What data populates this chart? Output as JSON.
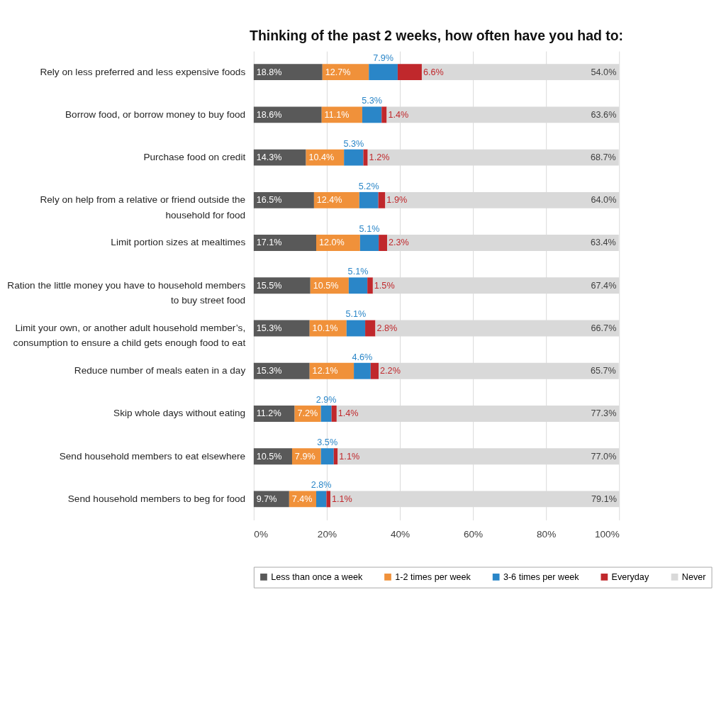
{
  "chart_data": {
    "type": "bar",
    "orientation": "horizontal",
    "stacked": true,
    "title": "Thinking of the past 2 weeks, how often have you had to:",
    "categories": [
      "Rely on less preferred and less expensive foods",
      "Borrow food, or borrow money to buy food",
      "Purchase food on credit",
      "Rely on help from a relative or friend outside the household for food",
      "Limit portion sizes at mealtimes",
      "Ration the little money you have to household members to buy street food",
      "Limit your own, or another adult household member’s, consumption to ensure a child gets enough food to eat",
      "Reduce number of meals eaten in a day",
      "Skip whole days without eating",
      "Send household members to eat elsewhere",
      "Send household members to beg for food"
    ],
    "series": [
      {
        "name": "Less than once a week",
        "color": "#595959",
        "values": [
          18.8,
          18.6,
          14.3,
          16.5,
          17.1,
          15.5,
          15.3,
          15.3,
          11.2,
          10.5,
          9.7
        ],
        "value_labels": [
          "18.8%",
          "18.6%",
          "14.3%",
          "16.5%",
          "17.1%",
          "15.5%",
          "15.3%",
          "15.3%",
          "11.2%",
          "10.5%",
          "9.7%"
        ]
      },
      {
        "name": "1-2 times per week",
        "color": "#f0913a",
        "values": [
          12.7,
          11.1,
          10.4,
          12.4,
          12.0,
          10.5,
          10.1,
          12.1,
          7.2,
          7.9,
          7.4
        ],
        "value_labels": [
          "12.7%",
          "11.1%",
          "10.4%",
          "12.4%",
          "12.0%",
          "10.5%",
          "10.1%",
          "12.1%",
          "7.2%",
          "7.9%",
          "7.4%"
        ]
      },
      {
        "name": "3-6 times per week",
        "color": "#2a86c8",
        "values": [
          7.9,
          5.3,
          5.3,
          5.2,
          5.1,
          5.1,
          5.1,
          4.6,
          2.9,
          3.5,
          2.8
        ],
        "value_labels": [
          "7.9%",
          "5.3%",
          "5.3%",
          "5.2%",
          "5.1%",
          "5.1%",
          "5.1%",
          "4.6%",
          "2.9%",
          "3.5%",
          "2.8%"
        ]
      },
      {
        "name": "Everyday",
        "color": "#c0282c",
        "values": [
          6.6,
          1.4,
          1.2,
          1.9,
          2.3,
          1.5,
          2.8,
          2.2,
          1.4,
          1.1,
          1.1
        ],
        "value_labels": [
          "6.6%",
          "1.4%",
          "1.2%",
          "1.9%",
          "2.3%",
          "1.5%",
          "2.8%",
          "2.2%",
          "1.4%",
          "1.1%",
          "1.1%"
        ]
      },
      {
        "name": "Never",
        "color": "#d9d9d9",
        "values": [
          54.0,
          63.6,
          68.7,
          64.0,
          63.4,
          67.4,
          66.7,
          65.7,
          77.3,
          77.0,
          79.1
        ],
        "value_labels": [
          "54.0%",
          "63.6%",
          "68.7%",
          "64.0%",
          "63.4%",
          "67.4%",
          "66.7%",
          "65.7%",
          "77.3%",
          "77.0%",
          "79.1%"
        ]
      }
    ],
    "xlim": [
      0,
      100
    ],
    "xticks": [
      {
        "value": 0,
        "label": "0%"
      },
      {
        "value": 20,
        "label": "20%"
      },
      {
        "value": 40,
        "label": "40%"
      },
      {
        "value": 60,
        "label": "60%"
      },
      {
        "value": 80,
        "label": "80%"
      },
      {
        "value": 100,
        "label": "100%"
      }
    ],
    "grid": "x",
    "legend": "bottom"
  }
}
